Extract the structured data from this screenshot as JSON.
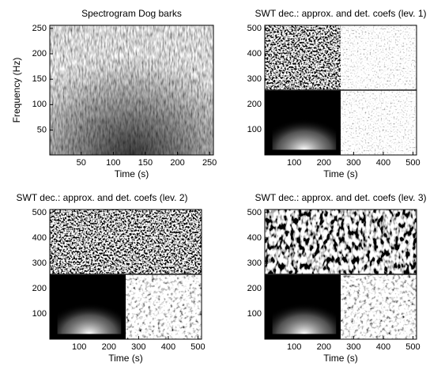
{
  "chart_data": [
    {
      "type": "image",
      "title": "Spectrogram Dog barks",
      "xlabel": "Time (s)",
      "ylabel": "Frequency (Hz)",
      "xlim": [
        1,
        256
      ],
      "ylim": [
        1,
        256
      ],
      "xticks": [
        50,
        100,
        150,
        200,
        250
      ],
      "yticks": [
        50,
        100,
        150,
        200,
        250
      ]
    },
    {
      "type": "image",
      "title": "SWT dec.: approx. and det. coefs (lev. 1)",
      "xlabel": "Time (s)",
      "xlim": [
        1,
        512
      ],
      "ylim": [
        1,
        512
      ],
      "xticks": [
        100,
        200,
        300,
        400,
        500
      ],
      "yticks": [
        100,
        200,
        300,
        400,
        500
      ]
    },
    {
      "type": "image",
      "title": "SWT dec.: approx. and det. coefs (lev. 2)",
      "xlabel": "Time (s)",
      "xlim": [
        1,
        512
      ],
      "ylim": [
        1,
        512
      ],
      "xticks": [
        100,
        200,
        300,
        400,
        500
      ],
      "yticks": [
        100,
        200,
        300,
        400,
        500
      ]
    },
    {
      "type": "image",
      "title": "SWT dec.: approx. and det. coefs (lev. 3)",
      "xlabel": "Time (s)",
      "xlim": [
        1,
        512
      ],
      "ylim": [
        1,
        512
      ],
      "xticks": [
        100,
        200,
        300,
        400,
        500
      ],
      "yticks": [
        100,
        200,
        300,
        400,
        500
      ]
    }
  ]
}
